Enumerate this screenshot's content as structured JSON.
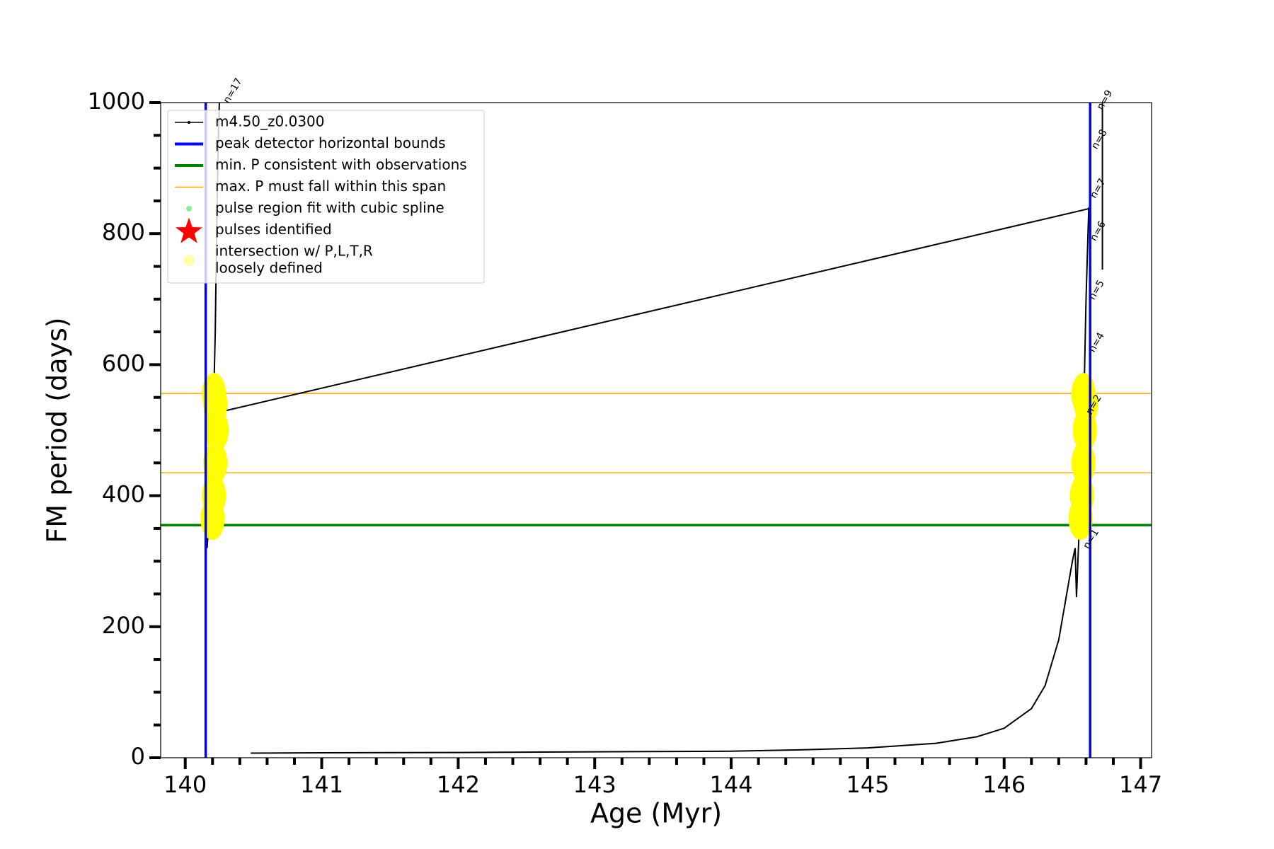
{
  "chart_data": {
    "type": "line",
    "x_label": "Age (Myr)",
    "y_label": "FM period (days)",
    "xlim": [
      139.82,
      147.08
    ],
    "ylim": [
      0,
      1000
    ],
    "xticks": [
      140,
      141,
      142,
      143,
      144,
      145,
      146,
      147
    ],
    "yticks": [
      0,
      200,
      400,
      600,
      800,
      1000
    ],
    "xminorticks": [
      140.2,
      140.4,
      140.6,
      140.8,
      141.2,
      141.4,
      141.6,
      141.8,
      142.2,
      142.4,
      142.6,
      142.8,
      143.2,
      143.4,
      143.6,
      143.8,
      144.2,
      144.4,
      144.6,
      144.8,
      145.2,
      145.4,
      145.6,
      145.8,
      146.2,
      146.4,
      146.6,
      146.8
    ],
    "yminorticks": [
      50,
      100,
      150,
      250,
      300,
      350,
      450,
      500,
      550,
      650,
      700,
      750,
      850,
      900,
      950
    ],
    "series": [
      {
        "name": "m4.50_z0.0300",
        "color": "#000000",
        "x": [
          140.16,
          140.18,
          140.2,
          140.21,
          140.22,
          140.23,
          140.24,
          140.25,
          null,
          140.3,
          146.62,
          null,
          140.48,
          141,
          142,
          143,
          144,
          144.5,
          145,
          145.5,
          145.8,
          146,
          146.2,
          146.3,
          146.4,
          146.45,
          146.5,
          146.52,
          146.53,
          146.55,
          146.58,
          146.6,
          146.62,
          null,
          146.72,
          146.72
        ],
        "values": [
          320,
          380,
          450,
          560,
          650,
          800,
          920,
          1000,
          null,
          530,
          838,
          null,
          7,
          7.5,
          8,
          9,
          10,
          12,
          15,
          22,
          32,
          45,
          75,
          110,
          180,
          240,
          300,
          320,
          245,
          350,
          500,
          700,
          840,
          null,
          1000,
          745
        ]
      }
    ],
    "vlines": {
      "color": "#0000ff",
      "x": [
        140.15,
        146.63
      ]
    },
    "hlines_min": {
      "color": "#008000",
      "y": [
        355
      ]
    },
    "hlines_max": {
      "color": "#ffa500",
      "y": [
        435,
        556
      ]
    },
    "intersections": {
      "color": "#ffff00",
      "x": [
        140.2,
        140.21,
        140.22,
        140.23,
        140.22,
        140.21,
        146.56,
        146.57,
        146.58,
        146.59,
        146.6,
        146.58
      ],
      "values": [
        365,
        400,
        450,
        500,
        540,
        555,
        365,
        400,
        450,
        500,
        540,
        555
      ]
    },
    "annotations": [
      {
        "text": "n=17",
        "x": 140.3,
        "y": 1000
      },
      {
        "text": "n=1",
        "x": 146.6,
        "y": 320
      },
      {
        "text": "n=2",
        "x": 146.62,
        "y": 525
      },
      {
        "text": "n=4",
        "x": 146.64,
        "y": 620
      },
      {
        "text": "n=5",
        "x": 146.64,
        "y": 700
      },
      {
        "text": "n=6",
        "x": 146.65,
        "y": 790
      },
      {
        "text": "n=7",
        "x": 146.65,
        "y": 855
      },
      {
        "text": "n=8",
        "x": 146.66,
        "y": 930
      },
      {
        "text": "n=9",
        "x": 146.7,
        "y": 990
      }
    ],
    "legend": [
      {
        "label": [
          "m4.50_z0.0300"
        ],
        "marker": "line-dot",
        "color": "#000000"
      },
      {
        "label": [
          "peak detector horizontal bounds"
        ],
        "marker": "thick-line",
        "color": "#0000ff"
      },
      {
        "label": [
          "min. P consistent with observations"
        ],
        "marker": "thick-line",
        "color": "#008000"
      },
      {
        "label": [
          "max. P must fall within this span"
        ],
        "marker": "line",
        "color": "#ffa500"
      },
      {
        "label": [
          "pulse region fit with cubic spline"
        ],
        "marker": "dot",
        "color": "#90ee90"
      },
      {
        "label": [
          "pulses identified"
        ],
        "marker": "star",
        "color": "#ff0000"
      },
      {
        "label": [
          "intersection w/ P,L,T,R",
          "loosely defined"
        ],
        "marker": "circle",
        "color": "#ffffaa"
      }
    ]
  }
}
